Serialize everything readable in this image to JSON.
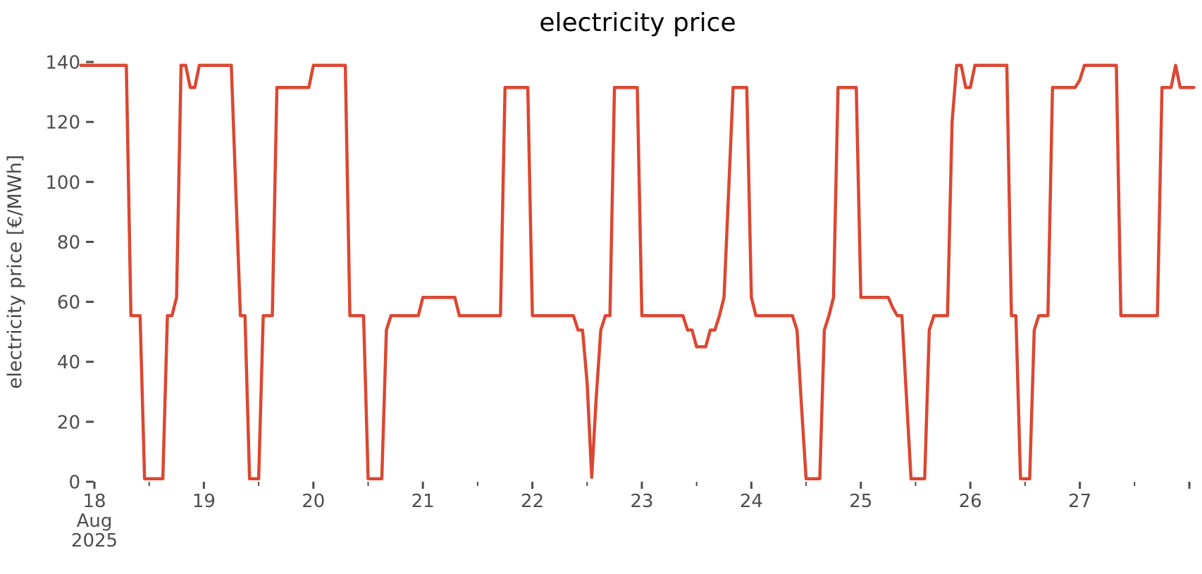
{
  "chart_data": {
    "type": "line",
    "title": "electricity price",
    "ylabel": "electricity price [€/MWh]",
    "unit": "€/MWh",
    "series_name": "electricity price",
    "line_color": "#dc4732",
    "tick_color": "#4d4d4d",
    "grid": false,
    "legend": "none",
    "start_time": "2025-08-17 21:00",
    "freq": "1h",
    "start_day_axis": 17.875,
    "ylim": [
      0,
      140
    ],
    "xlim_days": [
      17.79,
      28.14
    ],
    "y_ticks": [
      0,
      20,
      40,
      60,
      80,
      100,
      120,
      140
    ],
    "x_major_ticks": [
      {
        "pos": 18,
        "lines": [
          "18",
          "Aug",
          "2025"
        ]
      },
      {
        "pos": 19,
        "lines": [
          "19"
        ]
      },
      {
        "pos": 20,
        "lines": [
          "20"
        ]
      },
      {
        "pos": 21,
        "lines": [
          "21"
        ]
      },
      {
        "pos": 22,
        "lines": [
          "22"
        ]
      },
      {
        "pos": 23,
        "lines": [
          "23"
        ]
      },
      {
        "pos": 24,
        "lines": [
          "24"
        ]
      },
      {
        "pos": 25,
        "lines": [
          "25"
        ]
      },
      {
        "pos": 26,
        "lines": [
          "26"
        ]
      },
      {
        "pos": 27,
        "lines": [
          "27"
        ]
      },
      {
        "pos": 28,
        "lines": []
      }
    ],
    "x_minor_ticks": [
      18.5,
      19.5,
      20.5,
      21.5,
      22.5,
      23.5,
      24.5,
      25.5,
      26.5,
      27.5
    ],
    "values": [
      138.9,
      138.9,
      138.9,
      138.9,
      138.9,
      138.9,
      138.9,
      138.9,
      138.9,
      138.9,
      138.9,
      55.4,
      55.4,
      55.4,
      1.0,
      1.0,
      1.0,
      1.0,
      1.0,
      55.4,
      55.4,
      61.5,
      138.9,
      138.9,
      131.5,
      131.5,
      138.9,
      138.9,
      138.9,
      138.9,
      138.9,
      138.9,
      138.9,
      138.9,
      97.0,
      55.4,
      55.4,
      1.0,
      1.0,
      1.0,
      55.4,
      55.4,
      55.4,
      131.5,
      131.5,
      131.5,
      131.5,
      131.5,
      131.5,
      131.5,
      131.5,
      138.9,
      138.9,
      138.9,
      138.9,
      138.9,
      138.9,
      138.9,
      138.9,
      55.4,
      55.4,
      55.4,
      55.4,
      1.0,
      1.0,
      1.0,
      1.0,
      50.6,
      55.4,
      55.4,
      55.4,
      55.4,
      55.4,
      55.4,
      55.4,
      61.5,
      61.5,
      61.5,
      61.5,
      61.5,
      61.5,
      61.5,
      61.5,
      55.4,
      55.4,
      55.4,
      55.4,
      55.4,
      55.4,
      55.4,
      55.4,
      55.4,
      55.4,
      131.5,
      131.5,
      131.5,
      131.5,
      131.5,
      131.5,
      55.4,
      55.4,
      55.4,
      55.4,
      55.4,
      55.4,
      55.4,
      55.4,
      55.4,
      55.4,
      50.6,
      50.6,
      33.0,
      1.5,
      28.0,
      50.6,
      55.4,
      55.4,
      131.5,
      131.5,
      131.5,
      131.5,
      131.5,
      131.5,
      55.4,
      55.4,
      55.4,
      55.4,
      55.4,
      55.4,
      55.4,
      55.4,
      55.4,
      55.4,
      50.6,
      50.6,
      45.0,
      45.0,
      45.0,
      50.6,
      50.6,
      55.4,
      61.5,
      96.0,
      131.5,
      131.5,
      131.5,
      131.5,
      61.5,
      55.4,
      55.4,
      55.4,
      55.4,
      55.4,
      55.4,
      55.4,
      55.4,
      55.4,
      50.6,
      25.0,
      1.0,
      1.0,
      1.0,
      1.0,
      50.6,
      55.4,
      61.5,
      131.5,
      131.5,
      131.5,
      131.5,
      131.5,
      61.5,
      61.5,
      61.5,
      61.5,
      61.5,
      61.5,
      61.5,
      58.0,
      55.4,
      55.4,
      28.0,
      1.0,
      1.0,
      1.0,
      1.0,
      50.6,
      55.4,
      55.4,
      55.4,
      55.4,
      120.0,
      138.9,
      138.9,
      131.5,
      131.5,
      138.9,
      138.9,
      138.9,
      138.9,
      138.9,
      138.9,
      138.9,
      138.9,
      55.4,
      55.4,
      1.0,
      1.0,
      1.0,
      50.6,
      55.4,
      55.4,
      55.4,
      131.5,
      131.5,
      131.5,
      131.5,
      131.5,
      131.5,
      134.0,
      138.9,
      138.9,
      138.9,
      138.9,
      138.9,
      138.9,
      138.9,
      138.9,
      55.4,
      55.4,
      55.4,
      55.4,
      55.4,
      55.4,
      55.4,
      55.4,
      55.4,
      131.5,
      131.5,
      131.5,
      138.9,
      131.5,
      131.5,
      131.5,
      131.5
    ]
  }
}
